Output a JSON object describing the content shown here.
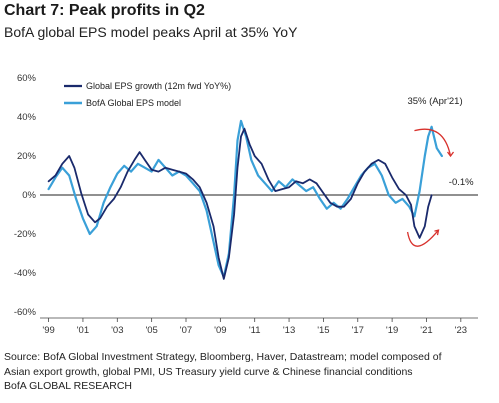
{
  "header": {
    "title": "Chart 7: Peak profits in Q2",
    "subtitle": "BofA global EPS model peaks April at 35% YoY"
  },
  "chart_data": {
    "type": "line",
    "title": "Chart 7: Peak profits in Q2",
    "subtitle": "BofA global EPS model peaks April at 35% YoY",
    "xlabel": "",
    "ylabel": "",
    "xlim": [
      1998.5,
      2024.0
    ],
    "ylim": [
      -60,
      60
    ],
    "y_ticks": [
      60,
      40,
      20,
      0,
      -20,
      -40,
      -60
    ],
    "y_tick_labels": [
      "60%",
      "40%",
      "20%",
      "0%",
      "-20%",
      "-40%",
      "-60%"
    ],
    "x_tick_values": [
      1999,
      2001,
      2003,
      2005,
      2007,
      2009,
      2011,
      2013,
      2015,
      2017,
      2019,
      2021,
      2023
    ],
    "x_tick_labels": [
      "'99",
      "'01",
      "'03",
      "'05",
      "'07",
      "'09",
      "'11",
      "'13",
      "'15",
      "'17",
      "'19",
      "'21",
      "'23"
    ],
    "legend_position": "top-left",
    "annotations": [
      {
        "text": "35% (Apr'21)",
        "x": 2021.3,
        "y": 35
      },
      {
        "text": "-0.1%",
        "x": 2021.0,
        "y": -0.1
      }
    ],
    "series": [
      {
        "name": "Global EPS growth (12m fwd YoY%)",
        "color": "#1a2a6c",
        "points": [
          [
            1999.0,
            7
          ],
          [
            1999.4,
            10
          ],
          [
            1999.8,
            16
          ],
          [
            2000.2,
            20
          ],
          [
            2000.5,
            14
          ],
          [
            2000.9,
            1
          ],
          [
            2001.3,
            -10
          ],
          [
            2001.7,
            -14
          ],
          [
            2002.0,
            -12
          ],
          [
            2002.4,
            -6
          ],
          [
            2002.8,
            -2
          ],
          [
            2003.2,
            4
          ],
          [
            2003.6,
            12
          ],
          [
            2004.0,
            18
          ],
          [
            2004.3,
            22
          ],
          [
            2004.6,
            18
          ],
          [
            2005.0,
            13
          ],
          [
            2005.4,
            12
          ],
          [
            2005.8,
            14
          ],
          [
            2006.2,
            13
          ],
          [
            2006.6,
            12
          ],
          [
            2007.0,
            11
          ],
          [
            2007.4,
            8
          ],
          [
            2007.8,
            4
          ],
          [
            2008.2,
            -4
          ],
          [
            2008.6,
            -16
          ],
          [
            2008.9,
            -32
          ],
          [
            2009.2,
            -43
          ],
          [
            2009.5,
            -32
          ],
          [
            2009.8,
            -10
          ],
          [
            2010.0,
            14
          ],
          [
            2010.2,
            30
          ],
          [
            2010.4,
            34
          ],
          [
            2010.7,
            26
          ],
          [
            2011.0,
            20
          ],
          [
            2011.4,
            16
          ],
          [
            2011.8,
            8
          ],
          [
            2012.2,
            2
          ],
          [
            2012.6,
            3
          ],
          [
            2013.0,
            4
          ],
          [
            2013.4,
            7
          ],
          [
            2013.8,
            6
          ],
          [
            2014.2,
            8
          ],
          [
            2014.6,
            6
          ],
          [
            2015.0,
            1
          ],
          [
            2015.4,
            -4
          ],
          [
            2015.8,
            -6
          ],
          [
            2016.2,
            -6
          ],
          [
            2016.6,
            -2
          ],
          [
            2017.0,
            6
          ],
          [
            2017.4,
            12
          ],
          [
            2017.8,
            16
          ],
          [
            2018.2,
            18
          ],
          [
            2018.6,
            16
          ],
          [
            2019.0,
            9
          ],
          [
            2019.4,
            3
          ],
          [
            2019.8,
            0
          ],
          [
            2020.1,
            -5
          ],
          [
            2020.3,
            -16
          ],
          [
            2020.6,
            -22
          ],
          [
            2020.9,
            -16
          ],
          [
            2021.1,
            -6
          ],
          [
            2021.3,
            -0.1
          ]
        ]
      },
      {
        "name": "BofA Global EPS model",
        "color": "#3aa0d8",
        "points": [
          [
            1999.0,
            3
          ],
          [
            1999.4,
            9
          ],
          [
            1999.8,
            14
          ],
          [
            2000.2,
            10
          ],
          [
            2000.6,
            -2
          ],
          [
            2001.0,
            -12
          ],
          [
            2001.4,
            -20
          ],
          [
            2001.8,
            -16
          ],
          [
            2002.2,
            -4
          ],
          [
            2002.6,
            4
          ],
          [
            2003.0,
            11
          ],
          [
            2003.4,
            15
          ],
          [
            2003.8,
            12
          ],
          [
            2004.2,
            16
          ],
          [
            2004.6,
            14
          ],
          [
            2005.0,
            12
          ],
          [
            2005.4,
            18
          ],
          [
            2005.8,
            14
          ],
          [
            2006.2,
            10
          ],
          [
            2006.6,
            12
          ],
          [
            2007.0,
            10
          ],
          [
            2007.4,
            6
          ],
          [
            2007.8,
            2
          ],
          [
            2008.2,
            -8
          ],
          [
            2008.6,
            -24
          ],
          [
            2008.9,
            -36
          ],
          [
            2009.2,
            -42
          ],
          [
            2009.5,
            -30
          ],
          [
            2009.8,
            0
          ],
          [
            2010.0,
            28
          ],
          [
            2010.2,
            38
          ],
          [
            2010.5,
            30
          ],
          [
            2010.8,
            18
          ],
          [
            2011.2,
            10
          ],
          [
            2011.6,
            6
          ],
          [
            2012.0,
            2
          ],
          [
            2012.4,
            7
          ],
          [
            2012.8,
            4
          ],
          [
            2013.2,
            8
          ],
          [
            2013.6,
            5
          ],
          [
            2014.0,
            2
          ],
          [
            2014.4,
            4
          ],
          [
            2014.8,
            -2
          ],
          [
            2015.2,
            -7
          ],
          [
            2015.6,
            -4
          ],
          [
            2016.0,
            -7
          ],
          [
            2016.4,
            -2
          ],
          [
            2016.8,
            4
          ],
          [
            2017.2,
            10
          ],
          [
            2017.6,
            14
          ],
          [
            2018.0,
            16
          ],
          [
            2018.4,
            10
          ],
          [
            2018.8,
            0
          ],
          [
            2019.2,
            -4
          ],
          [
            2019.6,
            -2
          ],
          [
            2020.0,
            -6
          ],
          [
            2020.3,
            -11
          ],
          [
            2020.6,
            2
          ],
          [
            2020.9,
            20
          ],
          [
            2021.1,
            30
          ],
          [
            2021.3,
            35
          ],
          [
            2021.6,
            24
          ],
          [
            2021.9,
            20
          ]
        ]
      }
    ]
  },
  "footer": {
    "source_line1": "Source:  BofA Global Investment Strategy, Bloomberg, Haver, Datastream; model composed  of",
    "source_line2": "Asian export growth, global PMI, US Treasury yield curve & Chinese  financial conditions",
    "source_line3": "BofA GLOBAL RESEARCH"
  }
}
